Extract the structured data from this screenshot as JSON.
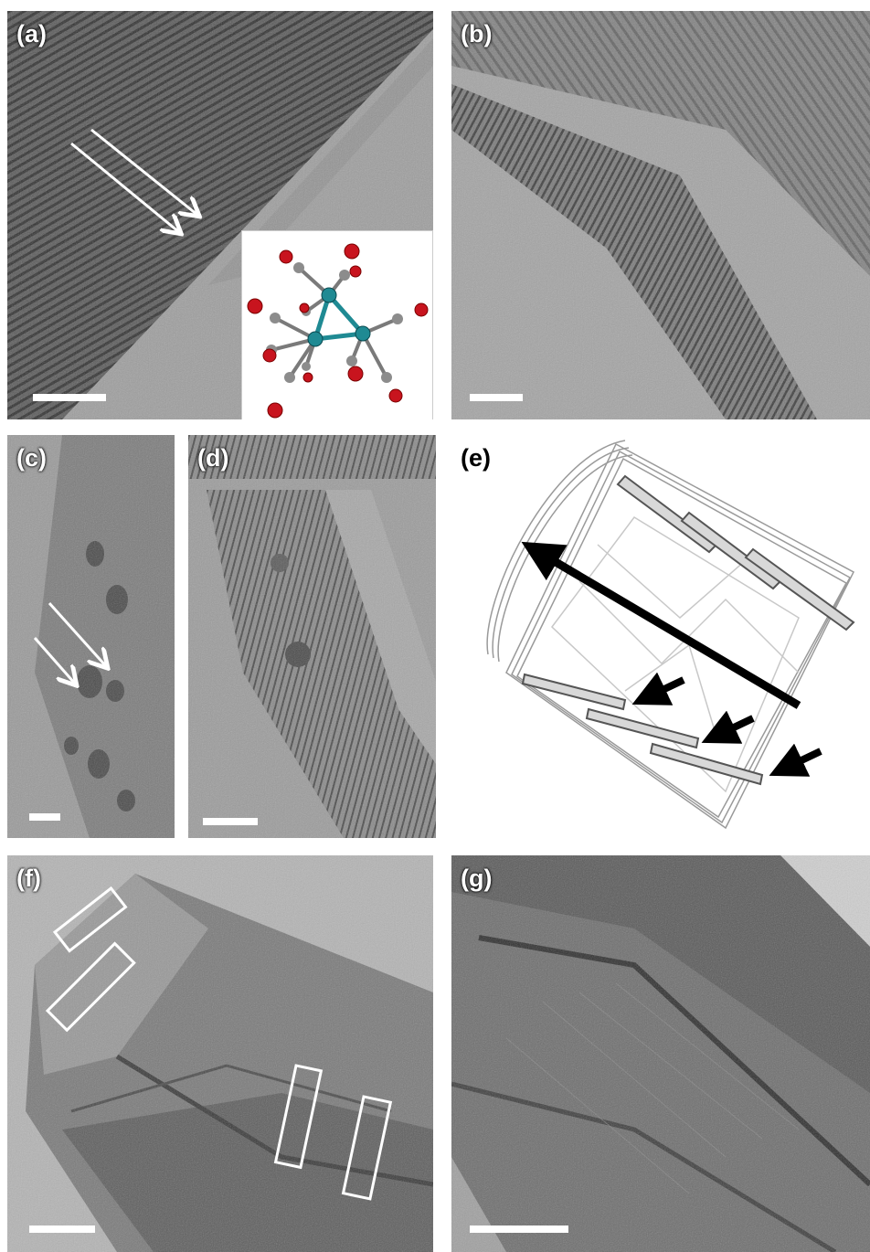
{
  "figure": {
    "panels": [
      {
        "id": "a",
        "label": "(a)"
      },
      {
        "id": "b",
        "label": "(b)"
      },
      {
        "id": "c",
        "label": "(c)"
      },
      {
        "id": "d",
        "label": "(d)"
      },
      {
        "id": "e",
        "label": "(e)"
      },
      {
        "id": "f",
        "label": "(f)"
      },
      {
        "id": "g",
        "label": "(g)"
      }
    ],
    "colors": {
      "background": "#ffffff",
      "tem_dark": "#3a3a3a",
      "tem_light": "#a8a8a8",
      "annotation_white": "#ffffff",
      "atom_metal": "#1f8a93",
      "atom_oxygen": "#c8141e",
      "atom_carbon": "#8c8c8c",
      "schematic_arrow": "#000000"
    }
  }
}
